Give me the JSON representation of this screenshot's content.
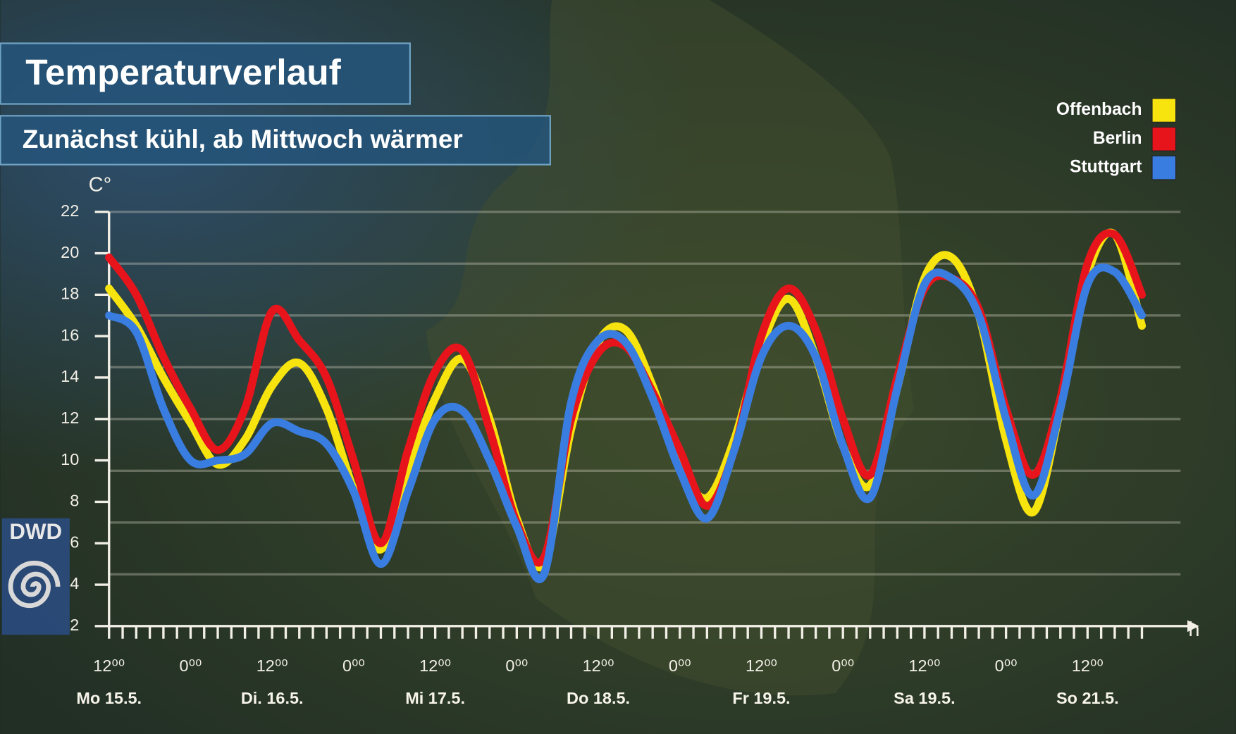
{
  "chart_data": {
    "type": "line",
    "title": "Temperaturverlauf",
    "subtitle": "Zunächst kühl, ab Mittwoch wärmer",
    "y_label": "C°",
    "x_label": "h",
    "x": [
      0,
      4,
      8,
      12,
      16,
      20,
      24,
      28,
      32,
      36,
      40,
      44,
      48,
      52,
      56,
      60,
      64,
      68,
      72,
      76,
      80,
      84,
      88,
      92,
      96,
      100,
      104,
      108,
      112,
      116,
      120,
      124,
      128,
      132,
      136,
      140,
      144,
      148,
      152
    ],
    "series": [
      {
        "name": "Offenbach",
        "color": "#f7e40f",
        "values": [
          18.3,
          16.5,
          14,
          11.8,
          9.8,
          11,
          13.6,
          14.7,
          12.5,
          8.6,
          5.7,
          9.5,
          13,
          14.9,
          12,
          7.2,
          5,
          11.5,
          15.7,
          16.3,
          13.6,
          9.8,
          8.2,
          11,
          15.5,
          17.8,
          15,
          10.7,
          8.8,
          13.5,
          18.8,
          19.8,
          17,
          11,
          7.5,
          12.5,
          19,
          20.9,
          16.5
        ]
      },
      {
        "name": "Berlin",
        "color": "#e8141c",
        "values": [
          19.8,
          18,
          15,
          12.5,
          10.5,
          12.5,
          17.2,
          15.8,
          14,
          10,
          6,
          10.5,
          14.3,
          15.3,
          11.5,
          7,
          5.3,
          12,
          15.2,
          15.5,
          13.3,
          10.5,
          7.8,
          10.5,
          16,
          18.3,
          16.3,
          12,
          9.3,
          14,
          18.3,
          18.8,
          17.3,
          12.5,
          9.3,
          13,
          19.5,
          20.9,
          18
        ]
      },
      {
        "name": "Stuttgart",
        "color": "#3a7de0",
        "values": [
          17,
          16.2,
          12.5,
          10,
          10,
          10.3,
          11.8,
          11.4,
          10.8,
          8.5,
          5,
          8.5,
          12,
          12.4,
          10,
          6.8,
          4.5,
          12.8,
          15.8,
          15.7,
          13,
          9.5,
          7.2,
          10.5,
          15,
          16.5,
          15,
          10.7,
          8.2,
          13.5,
          18.5,
          18.8,
          17,
          12,
          8.3,
          12.5,
          18.5,
          19.1,
          17
        ]
      }
    ],
    "xlim": [
      0,
      157
    ],
    "ylim": [
      2,
      22
    ],
    "yticks": [
      2,
      4,
      6,
      8,
      10,
      12,
      14,
      16,
      18,
      20,
      22
    ],
    "grid_lines": [
      22,
      19.5,
      17,
      14.5,
      12,
      9.5,
      7,
      4.5
    ],
    "xticks": [
      {
        "value": 0,
        "label": "12⁰⁰"
      },
      {
        "value": 12,
        "label": "0⁰⁰"
      },
      {
        "value": 24,
        "label": "12⁰⁰"
      },
      {
        "value": 36,
        "label": "0⁰⁰"
      },
      {
        "value": 48,
        "label": "12⁰⁰"
      },
      {
        "value": 60,
        "label": "0⁰⁰"
      },
      {
        "value": 72,
        "label": "12⁰⁰"
      },
      {
        "value": 84,
        "label": "0⁰⁰"
      },
      {
        "value": 96,
        "label": "12⁰⁰"
      },
      {
        "value": 108,
        "label": "0⁰⁰"
      },
      {
        "value": 120,
        "label": "12⁰⁰"
      },
      {
        "value": 132,
        "label": "0⁰⁰"
      },
      {
        "value": 144,
        "label": "12⁰⁰"
      }
    ],
    "minor_ticks": [
      0,
      2,
      4,
      6,
      8,
      10,
      12,
      14,
      16,
      18,
      20,
      22,
      24,
      26,
      28,
      30,
      32,
      34,
      36,
      38,
      40,
      42,
      44,
      46,
      48,
      50,
      52,
      54,
      56,
      58,
      60,
      62,
      64,
      66,
      68,
      70,
      72,
      74,
      76,
      78,
      80,
      82,
      84,
      86,
      88,
      90,
      92,
      94,
      96,
      98,
      100,
      102,
      104,
      106,
      108,
      110,
      112,
      114,
      116,
      118,
      120,
      122,
      124,
      126,
      128,
      130,
      132,
      134,
      136,
      138,
      140,
      142,
      144,
      146,
      148,
      150,
      152
    ],
    "day_labels": [
      {
        "value": 0,
        "label": "Mo 15.5."
      },
      {
        "value": 24,
        "label": "Di. 16.5."
      },
      {
        "value": 48,
        "label": "Mi 17.5."
      },
      {
        "value": 72,
        "label": "Do 18.5."
      },
      {
        "value": 96,
        "label": "Fr 19.5."
      },
      {
        "value": 120,
        "label": "Sa 19.5."
      },
      {
        "value": 144,
        "label": "So 21.5."
      }
    ]
  },
  "logo": "DWD"
}
